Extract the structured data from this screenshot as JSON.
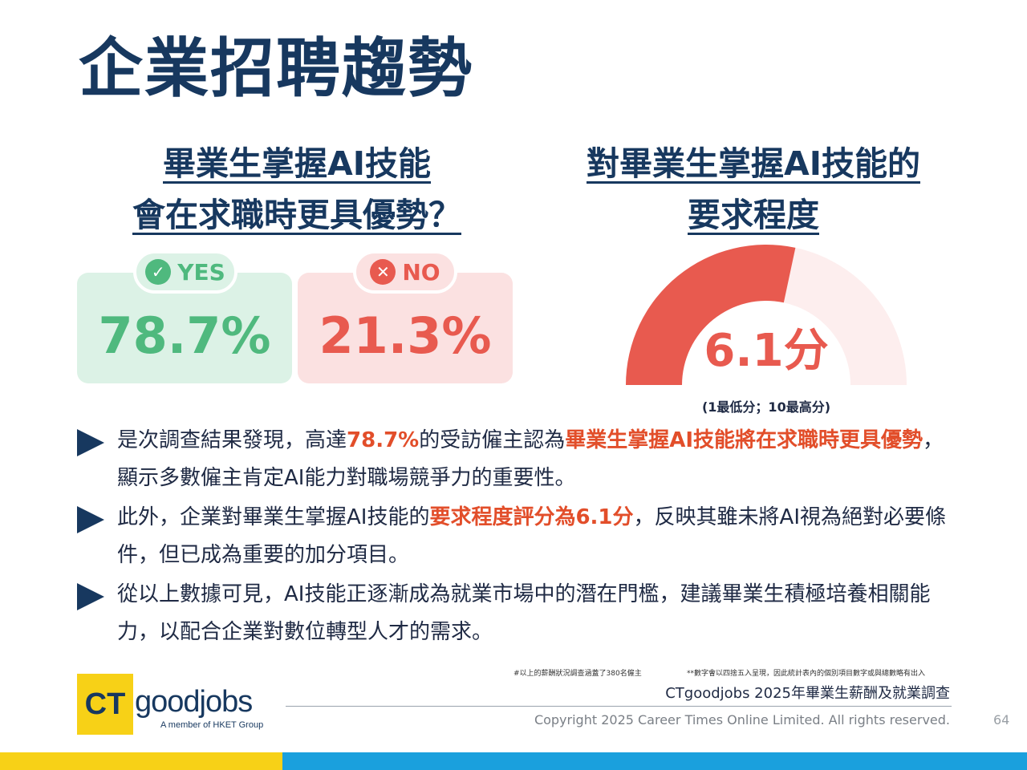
{
  "title": "企業招聘趨勢",
  "left_question": {
    "line1": "畢業生掌握AI技能",
    "line2": "會在求職時更具優勢？"
  },
  "right_question": {
    "line1": "對畢業生掌握AI技能的",
    "line2": "要求程度"
  },
  "colors": {
    "navy": "#17385f",
    "green": "#4fb97e",
    "red": "#e85a4f",
    "highlight": "#e24e2a",
    "yellow": "#f7d117",
    "blue": "#1aa0dd"
  },
  "chart_data": [
    {
      "type": "bar",
      "categories": [
        "YES",
        "NO"
      ],
      "values": [
        78.7,
        21.3
      ],
      "value_labels": [
        "78.7%",
        "21.3%"
      ],
      "icons": [
        "check-circle-icon",
        "x-circle-icon"
      ]
    },
    {
      "type": "gauge",
      "value": 6.1,
      "min": 1,
      "max": 10,
      "value_label": "6.1分",
      "scale_note": "(1最低分；10最高分)"
    }
  ],
  "bullets": [
    {
      "pre": "是次調查結果發現，高達",
      "hl1": "78.7%",
      "mid": "的受訪僱主認為",
      "hl2": "畢業生掌握AI技能將在求職時更具優勢",
      "post": "，顯示多數僱主肯定AI能力對職場競爭力的重要性。"
    },
    {
      "pre": "此外，企業對畢業生掌握AI技能的",
      "hl1": "要求程度評分為6.1分",
      "post": "，反映其雖未將AI視為絕對必要條件，但已成為重要的加分項目。"
    },
    {
      "text": "從以上數據可見，AI技能正逐漸成為就業市場中的潛在門檻，建議畢業生積極培養相關能力，以配合企業對數位轉型人才的需求。"
    }
  ],
  "logo": {
    "ct": "CT",
    "goodjobs": "goodjobs",
    "tagline": "A member of HKET Group"
  },
  "footnote1": "#以上的薪酬狀況調查涵蓋了380名僱主",
  "footnote2": "**數字會以四捨五入呈現，因此統計表內的個別項目數字或與總數略有出入",
  "survey_name": "CTgoodjobs 2025年畢業生薪酬及就業調查",
  "copyright": "Copyright 2025 Career Times Online Limited. All rights reserved.",
  "page_number": "64"
}
